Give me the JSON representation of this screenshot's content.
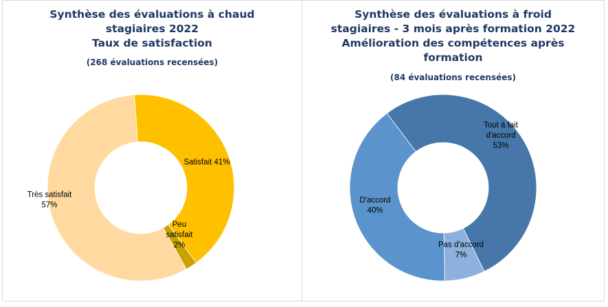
{
  "chart_data": [
    {
      "type": "pie",
      "title_lines": [
        "Synthèse des évaluations à chaud",
        "stagiaires 2022",
        "Taux de satisfaction"
      ],
      "subtitle": "(268 évaluations recensées)",
      "labels": [
        "Satisfait",
        "Peu satisfait",
        "Très satisfait"
      ],
      "values": [
        41,
        2,
        57
      ],
      "colors": [
        "#ffc000",
        "#c9a100",
        "#ffd9a0"
      ],
      "data_labels": [
        [
          "Satisfait 41%"
        ],
        [
          "Peu",
          "satisfait",
          "2%"
        ],
        [
          "Très satisfait",
          "57%"
        ]
      ]
    },
    {
      "type": "pie",
      "title_lines": [
        "Synthèse des évaluations à froid",
        "stagiaires - 3 mois après formation 2022",
        "Amélioration des compétences après",
        "formation"
      ],
      "subtitle": "(84 évaluations recensées)",
      "labels": [
        "Tout à fait d'accord",
        "Pas d'accord",
        "D'accord"
      ],
      "values": [
        53,
        7,
        40
      ],
      "colors": [
        "#4677a8",
        "#8db0dd",
        "#5b93cc"
      ],
      "data_labels": [
        [
          "Tout à fait",
          "d'accord",
          "53%"
        ],
        [
          "Pas d'accord",
          "7%"
        ],
        [
          "D'accord",
          "40%"
        ]
      ]
    }
  ]
}
